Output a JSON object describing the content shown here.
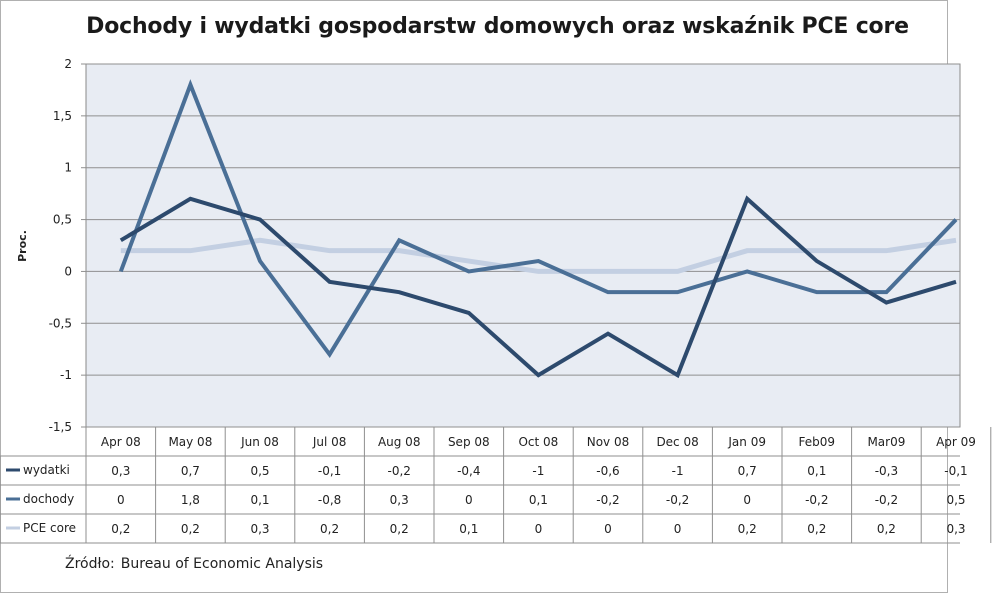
{
  "chart_data": {
    "type": "line",
    "title": "Dochody i wydatki gospodarstw domowych oraz wskaźnik PCE core",
    "xlabel": "",
    "ylabel": "Proc.",
    "ylim": [
      -1.5,
      2
    ],
    "yticks": [
      "2",
      "1,5",
      "1",
      "0,5",
      "0",
      "-0,5",
      "-1",
      "-1,5"
    ],
    "ytick_values": [
      2,
      1.5,
      1,
      0.5,
      0,
      -0.5,
      -1,
      -1.5
    ],
    "grid": true,
    "legend": "data-table-left",
    "categories": [
      "Apr 08",
      "May 08",
      "Jun 08",
      "Jul 08",
      "Aug 08",
      "Sep 08",
      "Oct 08",
      "Nov 08",
      "Dec 08",
      "Jan 09",
      "Feb09",
      "Mar09",
      "Apr 09"
    ],
    "series": [
      {
        "name": "wydatki",
        "color": "#2d4a6d",
        "values": [
          0.3,
          0.7,
          0.5,
          -0.1,
          -0.2,
          -0.4,
          -1,
          -0.6,
          -1,
          0.7,
          0.1,
          -0.3,
          -0.1
        ],
        "labels": [
          "0,3",
          "0,7",
          "0,5",
          "-0,1",
          "-0,2",
          "-0,4",
          "-1",
          "-0,6",
          "-1",
          "0,7",
          "0,1",
          "-0,3",
          "-0,1"
        ]
      },
      {
        "name": "dochody",
        "color": "#4a6f96",
        "values": [
          0,
          1.8,
          0.1,
          -0.8,
          0.3,
          0,
          0.1,
          -0.2,
          -0.2,
          0,
          -0.2,
          -0.2,
          0.5
        ],
        "labels": [
          "0",
          "1,8",
          "0,1",
          "-0,8",
          "0,3",
          "0",
          "0,1",
          "-0,2",
          "-0,2",
          "0",
          "-0,2",
          "-0,2",
          "0,5"
        ]
      },
      {
        "name": "PCE core",
        "color": "#c3cfe2",
        "values": [
          0.2,
          0.2,
          0.3,
          0.2,
          0.2,
          0.1,
          0,
          0,
          0,
          0.2,
          0.2,
          0.2,
          0.3
        ],
        "labels": [
          "0,2",
          "0,2",
          "0,3",
          "0,2",
          "0,2",
          "0,1",
          "0",
          "0",
          "0",
          "0,2",
          "0,2",
          "0,2",
          "0,3"
        ]
      }
    ]
  },
  "source": {
    "label": "Źródło:",
    "text": "Bureau of Economic Analysis"
  }
}
